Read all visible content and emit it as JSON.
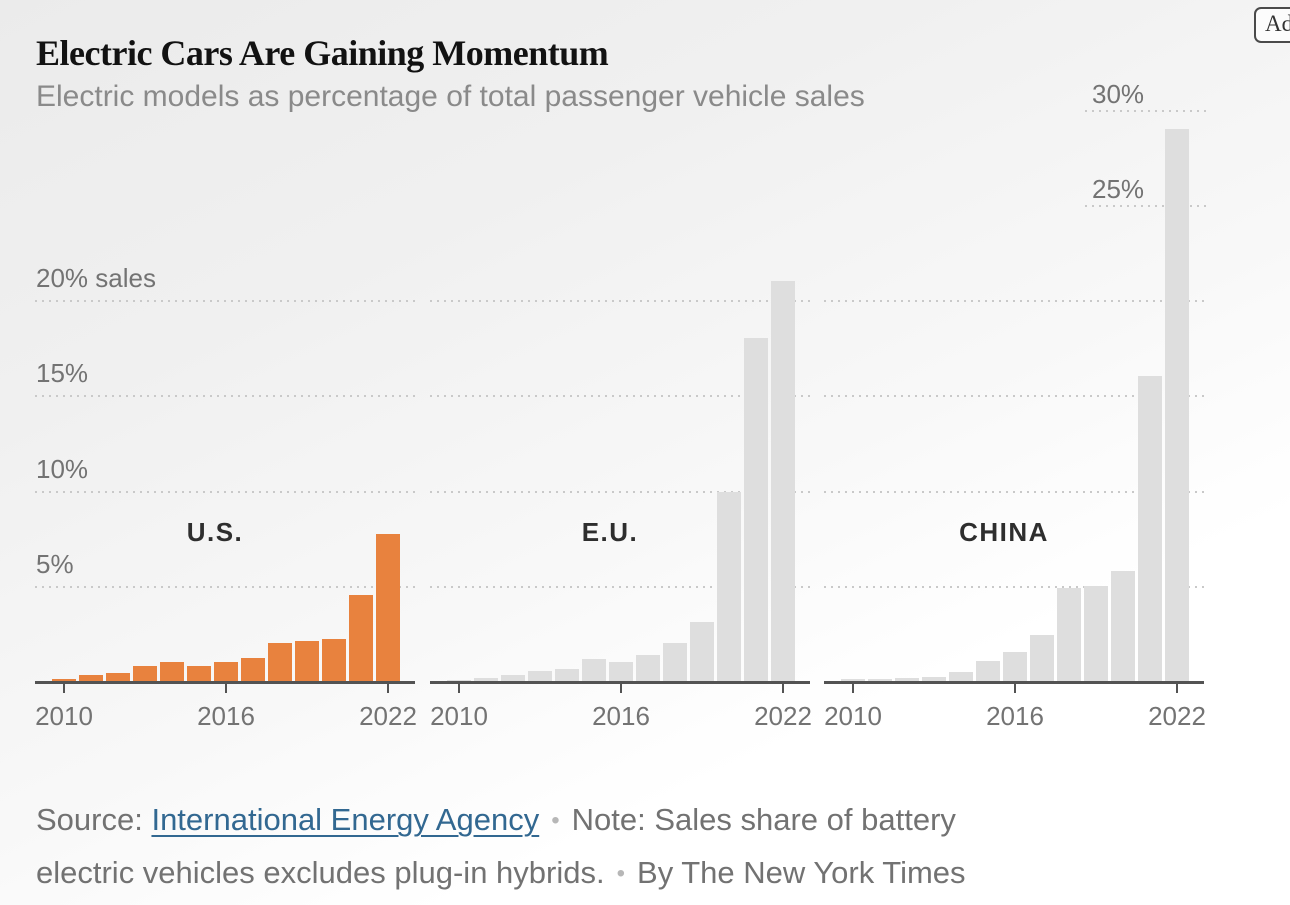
{
  "page": {
    "title": "Electric Cars Are Gaining Momentum",
    "subtitle": "Electric models as percentage of total passenger vehicle sales",
    "ad_label": "Ad"
  },
  "caption": {
    "source_label": "Source: ",
    "source_link_text": "International Energy Agency",
    "bullet": "•",
    "note_line1": "Note: Sales share of battery",
    "note_line2": "electric vehicles excludes plug-in hybrids.",
    "byline": "By The New York Times"
  },
  "colors": {
    "highlight_orange": "#E8823E",
    "bar_gray": "#DEDEDE",
    "gridline": "#C9C9C9",
    "axis": "#535353",
    "axis_label": "#737373",
    "panel_title": "#2E2E2E",
    "title_text": "#121212",
    "subtitle_text": "#8A8A8A",
    "caption_text": "#727272",
    "link_blue": "#326891",
    "bullet_gray": "#B7B7B7"
  },
  "chart_data": {
    "type": "bar",
    "title": "Electric Cars Are Gaining Momentum",
    "subtitle": "Electric models as percentage of total passenger vehicle sales",
    "unit": "percent of total passenger vehicle sales",
    "x": [
      2010,
      2011,
      2012,
      2013,
      2014,
      2015,
      2016,
      2017,
      2018,
      2019,
      2020,
      2021,
      2022
    ],
    "x_tick_labels": [
      "2010",
      "2016",
      "2022"
    ],
    "ylim": [
      0,
      30
    ],
    "grid": "dotted horizontal, labels above lines",
    "legend_position": "none",
    "y_axis_labels": [
      {
        "value": 5,
        "label": "5%"
      },
      {
        "value": 10,
        "label": "10%"
      },
      {
        "value": 15,
        "label": "15%"
      },
      {
        "value": 20,
        "label": "20% sales"
      }
    ],
    "series": [
      {
        "name": "U.S.",
        "highlight": true,
        "values": [
          0.1,
          0.3,
          0.4,
          0.8,
          1.0,
          0.8,
          1.0,
          1.2,
          2.0,
          2.1,
          2.2,
          4.5,
          7.7
        ]
      },
      {
        "name": "E.U.",
        "highlight": false,
        "values": [
          0.05,
          0.15,
          0.3,
          0.5,
          0.65,
          1.15,
          1.0,
          1.35,
          2.0,
          3.1,
          9.9,
          18.0,
          21.0
        ]
      },
      {
        "name": "CHINA",
        "highlight": false,
        "values": [
          0.1,
          0.1,
          0.15,
          0.2,
          0.45,
          1.05,
          1.5,
          2.4,
          4.9,
          5.0,
          5.8,
          16.0,
          29.0
        ],
        "extra_gridlines": [
          {
            "value": 25,
            "label": "25%"
          },
          {
            "value": 30,
            "label": "30%"
          }
        ]
      }
    ]
  }
}
